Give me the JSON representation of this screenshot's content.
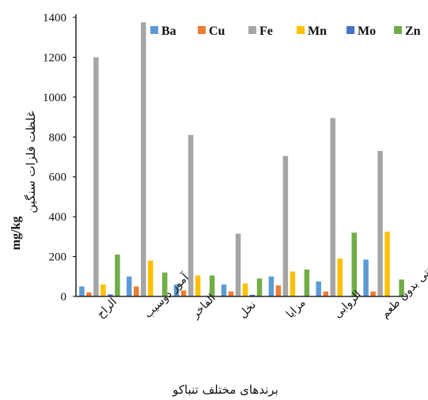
{
  "chart_data": {
    "type": "bar",
    "categories": [
      "الراح",
      "آمور دوسیب",
      "الفاخر",
      "نخل",
      "مزایا",
      "الروابی",
      "سنتی بدون طعم"
    ],
    "series": [
      {
        "name": "Ba",
        "color": "#5B9BD5",
        "values": [
          50,
          100,
          60,
          60,
          100,
          75,
          185
        ]
      },
      {
        "name": "Cu",
        "color": "#ED7D31",
        "values": [
          20,
          50,
          30,
          25,
          55,
          25,
          25
        ]
      },
      {
        "name": "Fe",
        "color": "#A5A5A5",
        "values": [
          1200,
          1375,
          810,
          315,
          705,
          895,
          730
        ]
      },
      {
        "name": "Mn",
        "color": "#FFC000",
        "values": [
          60,
          180,
          105,
          65,
          125,
          190,
          325
        ]
      },
      {
        "name": "Mo",
        "color": "#4472C4",
        "values": [
          10,
          2,
          2,
          8,
          2,
          2,
          2
        ]
      },
      {
        "name": "Zn",
        "color": "#70AD47",
        "values": [
          210,
          120,
          105,
          90,
          135,
          320,
          85
        ]
      }
    ],
    "ylim": [
      0,
      1400
    ],
    "yticks": [
      0,
      200,
      400,
      600,
      800,
      1000,
      1200,
      1400
    ],
    "ylabel_fa": "غلظت فلزات سنگین",
    "ylabel_unit": "mg/kg",
    "xlabel": "برندهای مختلف تنباکو",
    "legend_position": "top",
    "grid": false
  }
}
